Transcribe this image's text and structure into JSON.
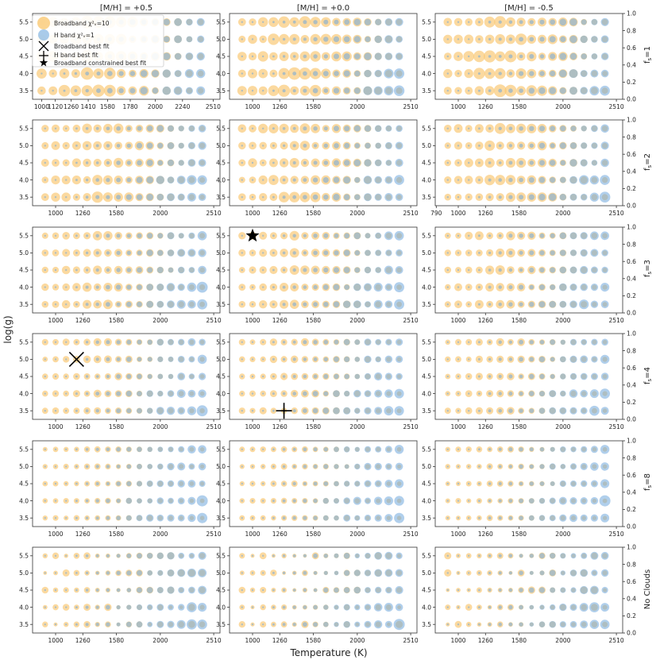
{
  "figure": {
    "xlabel": "Temperature (K)",
    "ylabel": "log(g)",
    "column_titles": [
      "[M/H] = +0.5",
      "[M/H] = +0.0",
      "[M/H] = -0.5"
    ],
    "row_labels": [
      "f_s=1",
      "f_s=2",
      "f_s=3",
      "f_s=4",
      "f_s=8",
      "No Clouds"
    ],
    "colors": {
      "broadband": "#f9c56b",
      "hband": "#6fa8dc",
      "overlap": "#9aa58e",
      "marker": "#000000",
      "axis": "#333333"
    }
  },
  "legend": {
    "items": [
      {
        "label": "Broadband χ²ᵥ=10",
        "symbol": "circle-broadband"
      },
      {
        "label": "H band χ²ᵥ=1",
        "symbol": "circle-hband"
      },
      {
        "label": "Broadband best fit",
        "symbol": "x-marker"
      },
      {
        "label": "H band best fit",
        "symbol": "plus-marker"
      },
      {
        "label": "Broadband constrained best fit",
        "symbol": "star-marker"
      }
    ]
  },
  "chart_data": {
    "type": "scatter",
    "temperature_grid": [
      900,
      1000,
      1100,
      1200,
      1300,
      1400,
      1500,
      1600,
      1700,
      1800,
      1900,
      2000,
      2100,
      2200,
      2300,
      2400
    ],
    "logg_grid": [
      3.5,
      4.0,
      4.5,
      5.0,
      5.5
    ],
    "ylim": [
      3.25,
      5.75
    ],
    "right_axis": {
      "range": [
        0.0,
        1.0
      ],
      "ticks": [
        "0.0",
        "0.2",
        "0.4",
        "0.6",
        "0.8",
        "1.0"
      ]
    },
    "yticks": [
      "3.5",
      "4.0",
      "4.5",
      "5.0",
      "5.5"
    ],
    "panels": [
      {
        "row": 0,
        "col": 0,
        "xlim": [
          920,
          2570
        ],
        "xticks": [
          1000,
          1120,
          1260,
          1410,
          1580,
          1780,
          2000,
          2240,
          2510
        ],
        "tmin": 1000,
        "legend": true
      },
      {
        "row": 0,
        "col": 1,
        "xlim": [
          780,
          2570
        ],
        "xticks": [
          1000,
          1260,
          1580,
          2000,
          2510
        ],
        "tmin": 900
      },
      {
        "row": 0,
        "col": 2,
        "xlim": [
          780,
          2570
        ],
        "xticks": [
          1000,
          1260,
          1580,
          2000,
          2510
        ],
        "tmin": 900
      },
      {
        "row": 1,
        "col": 0,
        "xlim": [
          780,
          2570
        ],
        "xticks": [
          1000,
          1260,
          1580,
          2000,
          2510
        ],
        "tmin": 900
      },
      {
        "row": 1,
        "col": 1,
        "xlim": [
          780,
          2570
        ],
        "xticks": [
          1000,
          1260,
          1580,
          2000,
          2510
        ],
        "tmin": 900
      },
      {
        "row": 1,
        "col": 2,
        "xlim": [
          780,
          2570
        ],
        "xticks": [
          790,
          1000,
          1260,
          1580,
          2000,
          2510
        ],
        "tmin": 900
      },
      {
        "row": 2,
        "col": 0,
        "xlim": [
          780,
          2570
        ],
        "xticks": [
          1000,
          1260,
          1580,
          2000,
          2510
        ],
        "tmin": 900
      },
      {
        "row": 2,
        "col": 1,
        "xlim": [
          780,
          2570
        ],
        "xticks": [
          1000,
          1260,
          1580,
          2000,
          2510
        ],
        "tmin": 900,
        "star": [
          1000,
          5.5
        ]
      },
      {
        "row": 2,
        "col": 2,
        "xlim": [
          780,
          2570
        ],
        "xticks": [
          1000,
          1260,
          1580,
          2000,
          2510
        ],
        "tmin": 900
      },
      {
        "row": 3,
        "col": 0,
        "xlim": [
          780,
          2570
        ],
        "xticks": [
          1000,
          1260,
          1580,
          2000,
          2510
        ],
        "tmin": 900,
        "cross": [
          1200,
          5.0
        ]
      },
      {
        "row": 3,
        "col": 1,
        "xlim": [
          780,
          2570
        ],
        "xticks": [
          1000,
          1260,
          1580,
          2000,
          2510
        ],
        "tmin": 900,
        "plus": [
          1300,
          3.5
        ]
      },
      {
        "row": 3,
        "col": 2,
        "xlim": [
          780,
          2570
        ],
        "xticks": [
          1000,
          1260,
          1580,
          2000,
          2510
        ],
        "tmin": 900
      },
      {
        "row": 4,
        "col": 0,
        "xlim": [
          780,
          2570
        ],
        "xticks": [
          1000,
          1260,
          1580,
          2000,
          2510
        ],
        "tmin": 900
      },
      {
        "row": 4,
        "col": 1,
        "xlim": [
          780,
          2570
        ],
        "xticks": [
          1000,
          1260,
          1580,
          2000,
          2510
        ],
        "tmin": 900
      },
      {
        "row": 4,
        "col": 2,
        "xlim": [
          780,
          2570
        ],
        "xticks": [
          1000,
          1260,
          1580,
          2000,
          2510
        ],
        "tmin": 900
      },
      {
        "row": 5,
        "col": 0,
        "xlim": [
          780,
          2570
        ],
        "xticks": [
          1000,
          1260,
          1580,
          2000,
          2510
        ],
        "tmin": 900
      },
      {
        "row": 5,
        "col": 1,
        "xlim": [
          780,
          2570
        ],
        "xticks": [
          1000,
          1260,
          1580,
          2000,
          2510
        ],
        "tmin": 900
      },
      {
        "row": 5,
        "col": 2,
        "xlim": [
          780,
          2570
        ],
        "xticks": [
          1000,
          1260,
          1580,
          2000,
          2510
        ],
        "tmin": 900
      }
    ]
  }
}
